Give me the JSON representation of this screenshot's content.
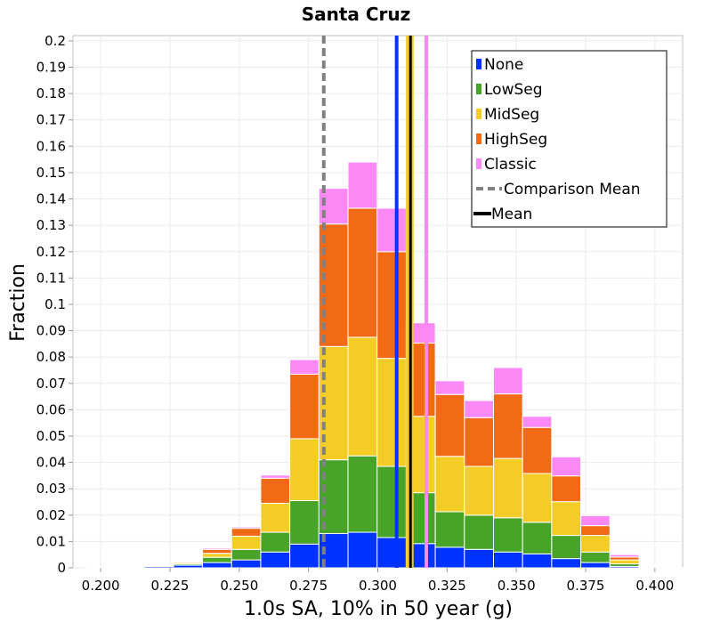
{
  "chart_data": {
    "type": "bar",
    "stacked": true,
    "title": "Santa Cruz",
    "xlabel": "1.0s SA, 10% in 50 year (g)",
    "ylabel": "Fraction",
    "xlim": [
      0.19,
      0.41
    ],
    "ylim": [
      0,
      0.202
    ],
    "bin_width": 0.0105,
    "x_ticks": [
      "0.200",
      "0.225",
      "0.250",
      "0.275",
      "0.300",
      "0.325",
      "0.350",
      "0.375",
      "0.400"
    ],
    "y_ticks": [
      "0",
      "0.01",
      "0.02",
      "0.03",
      "0.04",
      "0.05",
      "0.06",
      "0.07",
      "0.08",
      "0.09",
      "0.1",
      "0.11",
      "0.12",
      "0.13",
      "0.14",
      "0.15",
      "0.16",
      "0.17",
      "0.18",
      "0.19",
      "0.2"
    ],
    "grid": true,
    "legend_position": "top-right",
    "x": [
      0.2,
      0.2105,
      0.221,
      0.2315,
      0.242,
      0.2525,
      0.263,
      0.2735,
      0.284,
      0.2945,
      0.305,
      0.3155,
      0.326,
      0.3365,
      0.347,
      0.3575,
      0.368,
      0.3785,
      0.389,
      0.3995,
      0.41
    ],
    "series": [
      {
        "name": "None",
        "color": "#0033ff",
        "values": [
          0.0002,
          0.0003,
          0.0005,
          0.001,
          0.002,
          0.003,
          0.006,
          0.009,
          0.013,
          0.0135,
          0.0115,
          0.0092,
          0.0078,
          0.007,
          0.006,
          0.0053,
          0.0035,
          0.002,
          0.0005,
          0.0002,
          0.0001
        ]
      },
      {
        "name": "LowSeg",
        "color": "#48a428",
        "values": [
          0.0001,
          0.0001,
          0.0002,
          0.0005,
          0.002,
          0.004,
          0.0075,
          0.0165,
          0.028,
          0.029,
          0.027,
          0.0193,
          0.0135,
          0.013,
          0.013,
          0.012,
          0.0088,
          0.004,
          0.001,
          0.0003,
          0
        ]
      },
      {
        "name": "MidSeg",
        "color": "#f4cc26",
        "values": [
          0.0001,
          0.0001,
          0.0002,
          0.0005,
          0.0015,
          0.005,
          0.011,
          0.0235,
          0.043,
          0.045,
          0.041,
          0.029,
          0.021,
          0.0185,
          0.0225,
          0.0185,
          0.0128,
          0.0063,
          0.0015,
          0.0003,
          0
        ]
      },
      {
        "name": "HighSeg",
        "color": "#f26a16",
        "values": [
          0,
          0,
          0.0001,
          0.0003,
          0.0015,
          0.003,
          0.0095,
          0.0245,
          0.0465,
          0.049,
          0.0405,
          0.0278,
          0.0235,
          0.0185,
          0.0245,
          0.0175,
          0.0098,
          0.0037,
          0.0011,
          0.0002,
          0
        ]
      },
      {
        "name": "Classic",
        "color": "#fb89f5",
        "values": [
          0,
          0,
          0,
          0.0001,
          0.0005,
          0.0005,
          0.0012,
          0.0055,
          0.0135,
          0.0175,
          0.0165,
          0.0077,
          0.0052,
          0.0065,
          0.01,
          0.0042,
          0.0072,
          0.0038,
          0.0009,
          0.0001,
          0
        ]
      }
    ],
    "vertical_lines": [
      {
        "name": "Comparison Mean",
        "x": 0.2805,
        "color": "#808080",
        "style": "dashed"
      },
      {
        "series": "None",
        "x": 0.3068,
        "color": "#0033ff",
        "style": "solid"
      },
      {
        "series": "LowSeg",
        "x": 0.3112,
        "color": "#48a428",
        "style": "solid"
      },
      {
        "series": "MidSeg",
        "x": 0.3108,
        "color": "#f4cc26",
        "style": "solid"
      },
      {
        "series": "HighSeg",
        "x": 0.3115,
        "color": "#f26a16",
        "style": "solid"
      },
      {
        "series": "Classic",
        "x": 0.3175,
        "color": "#fb89f5",
        "style": "solid"
      },
      {
        "name": "Mean",
        "x": 0.3118,
        "color": "#000000",
        "style": "solid"
      }
    ],
    "legend": [
      {
        "label": "None",
        "color": "#0033ff",
        "kind": "box"
      },
      {
        "label": "LowSeg",
        "color": "#48a428",
        "kind": "box"
      },
      {
        "label": "MidSeg",
        "color": "#f4cc26",
        "kind": "box"
      },
      {
        "label": "HighSeg",
        "color": "#f26a16",
        "kind": "box"
      },
      {
        "label": "Classic",
        "color": "#fb89f5",
        "kind": "box"
      },
      {
        "label": "Comparison Mean",
        "color": "#808080",
        "kind": "dashed"
      },
      {
        "label": "Mean",
        "color": "#000000",
        "kind": "line"
      }
    ]
  }
}
